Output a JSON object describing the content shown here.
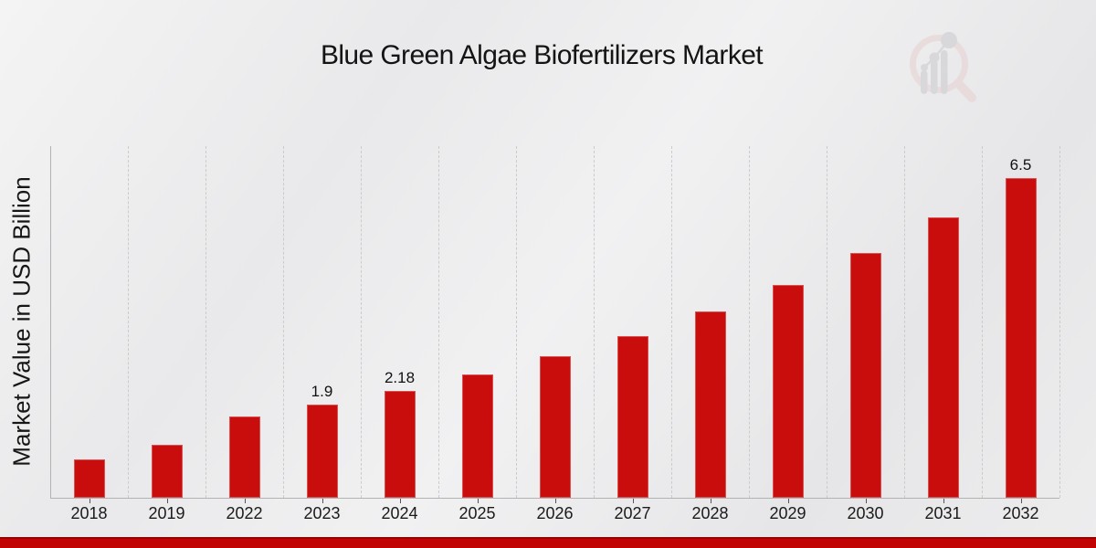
{
  "page": {
    "title": "Blue Green Algae Biofertilizers Market"
  },
  "branding": {
    "logo_icon": "magnifying-glass-bar-chart-watermark"
  },
  "colors": {
    "bar_red": "#c90d0d",
    "footer_red": "#c10303",
    "footer_edge_red": "#970101",
    "axis_gray": "#b2b2b2",
    "grid_gray": "#cbcbcb",
    "tick_gray": "#555555",
    "text_dark": "#141414",
    "logo_pink": "#e8d0d1",
    "logo_gray": "#c9c9cd"
  },
  "chart_data": {
    "type": "bar",
    "title": "Blue Green Algae Biofertilizers Market",
    "xlabel": "",
    "ylabel": "Market Value in USD Billion",
    "categories": [
      "2018",
      "2019",
      "2022",
      "2023",
      "2024",
      "2025",
      "2026",
      "2027",
      "2028",
      "2029",
      "2030",
      "2031",
      "2032"
    ],
    "values": [
      0.78,
      1.08,
      1.65,
      1.9,
      2.18,
      2.5,
      2.87,
      3.28,
      3.78,
      4.33,
      4.97,
      5.7,
      6.5
    ],
    "bar_labels": [
      "",
      "",
      "",
      "1.9",
      "2.18",
      "",
      "",
      "",
      "",
      "",
      "",
      "",
      "6.5"
    ],
    "ylim": [
      0,
      7.15
    ],
    "grid": "vertical-dashed-category-separators",
    "legend": "none",
    "bar_color": "#c90d0d",
    "orientation": "vertical"
  }
}
